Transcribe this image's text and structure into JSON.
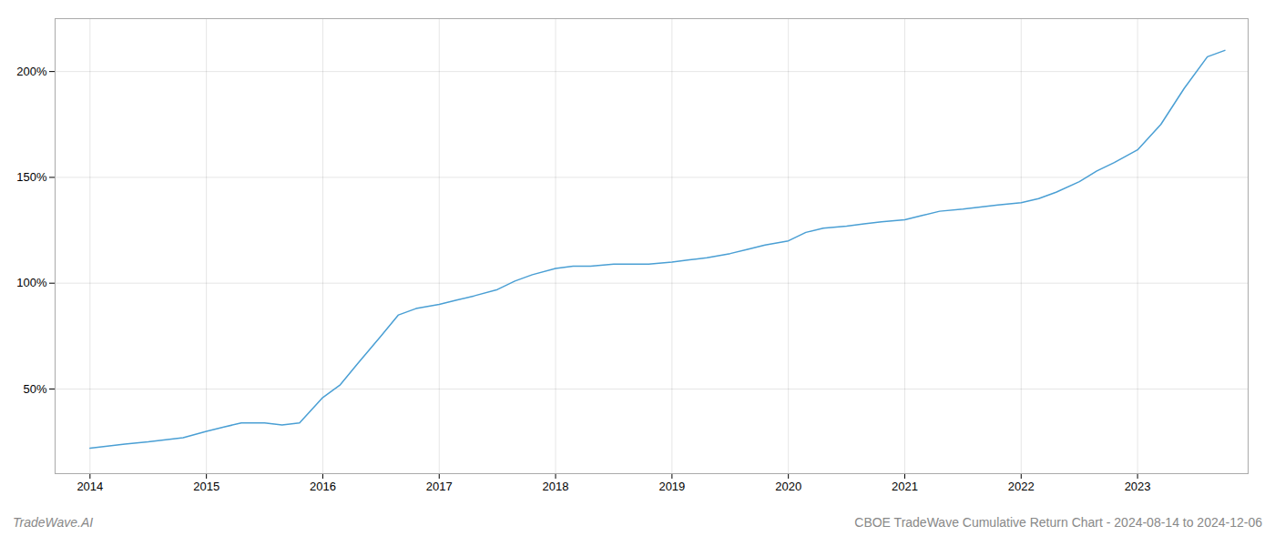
{
  "chart_data": {
    "type": "line",
    "title": "CBOE TradeWave Cumulative Return Chart - 2024-08-14 to 2024-12-06",
    "annotations": [
      "TradeWave.AI"
    ],
    "x": [
      2014.0,
      2014.15,
      2014.3,
      2014.5,
      2014.65,
      2014.8,
      2015.0,
      2015.15,
      2015.3,
      2015.5,
      2015.65,
      2015.8,
      2016.0,
      2016.15,
      2016.3,
      2016.5,
      2016.65,
      2016.8,
      2017.0,
      2017.15,
      2017.3,
      2017.5,
      2017.65,
      2017.8,
      2018.0,
      2018.15,
      2018.3,
      2018.5,
      2018.65,
      2018.8,
      2019.0,
      2019.15,
      2019.3,
      2019.5,
      2019.65,
      2019.8,
      2020.0,
      2020.15,
      2020.3,
      2020.5,
      2020.65,
      2020.8,
      2021.0,
      2021.15,
      2021.3,
      2021.5,
      2021.65,
      2021.8,
      2022.0,
      2022.15,
      2022.3,
      2022.5,
      2022.65,
      2022.8,
      2023.0,
      2023.2,
      2023.4,
      2023.6,
      2023.75
    ],
    "values": [
      22,
      23,
      24,
      25,
      26,
      27,
      30,
      32,
      34,
      34,
      33,
      34,
      46,
      52,
      62,
      75,
      85,
      88,
      90,
      92,
      94,
      97,
      101,
      104,
      107,
      108,
      108,
      109,
      109,
      109,
      110,
      111,
      112,
      114,
      116,
      118,
      120,
      124,
      126,
      127,
      128,
      129,
      130,
      132,
      134,
      135,
      136,
      137,
      138,
      140,
      143,
      148,
      153,
      157,
      163,
      175,
      192,
      207,
      210
    ],
    "color": "#4a9fd4",
    "xlim": [
      2013.7,
      2023.95
    ],
    "ylim": [
      10,
      225
    ],
    "xticks": [
      2014,
      2015,
      2016,
      2017,
      2018,
      2019,
      2020,
      2021,
      2022,
      2023
    ],
    "yticks": [
      {
        "value": 50,
        "label": "50%"
      },
      {
        "value": 100,
        "label": "100%"
      },
      {
        "value": 150,
        "label": "150%"
      },
      {
        "value": 200,
        "label": "200%"
      }
    ],
    "grid": true
  }
}
